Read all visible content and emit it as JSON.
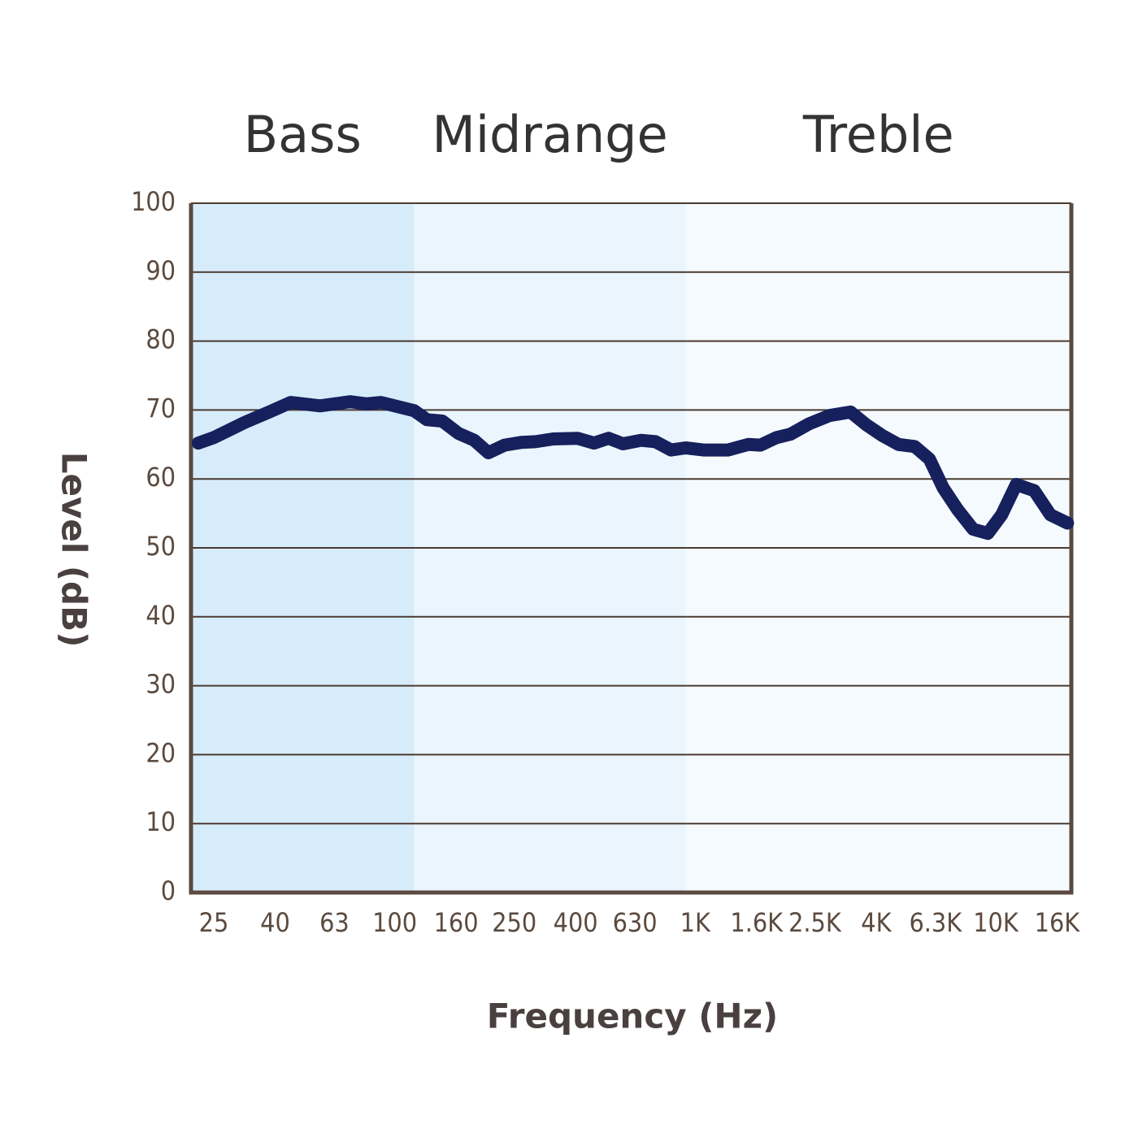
{
  "chart_data": {
    "type": "line",
    "y_label": "Level (dB)",
    "x_label": "Frequency (Hz)",
    "xscale": "log",
    "xlim": [
      21,
      17850
    ],
    "ylim": [
      0,
      100
    ],
    "xticks": [
      25,
      40,
      63,
      100,
      160,
      250,
      400,
      630,
      {
        "value": 1000,
        "label": "1K"
      },
      {
        "value": 1600,
        "label": "1.6K"
      },
      {
        "value": 2500,
        "label": "2.5K"
      },
      {
        "value": 4000,
        "label": "4K"
      },
      {
        "value": 6300,
        "label": "6.3K"
      },
      {
        "value": 10000,
        "label": "10K"
      },
      {
        "value": 16000,
        "label": "16K"
      }
    ],
    "yticks": [
      0,
      10,
      20,
      30,
      40,
      50,
      60,
      70,
      80,
      90,
      100
    ],
    "grid": true,
    "regions": [
      {
        "label": "Bass",
        "from": 21,
        "to": 116,
        "color": "#d7ecfb"
      },
      {
        "label": "Midrange",
        "from": 116,
        "to": 930,
        "color": "#eaf5fd"
      },
      {
        "label": "Treble",
        "from": 930,
        "to": 17850,
        "color": "#f5fafe"
      }
    ],
    "color": "#16205c",
    "x": [
      22.2,
      25,
      31.7,
      38.2,
      45.1,
      56.5,
      71.1,
      80.5,
      90,
      116,
      128,
      144,
      163,
      184,
      205,
      232,
      263,
      294,
      337,
      406,
      460,
      515,
      575,
      660,
      738,
      831,
      930,
      1066,
      1285,
      1500,
      1648,
      1866,
      2075,
      2393,
      2797,
      3288,
      3700,
      4190,
      4745,
      5375,
      6013,
      6684,
      7480,
      8413,
      9418,
      10465,
      11698,
      13425,
      15200,
      17330
    ],
    "values": [
      65.2,
      66.0,
      68.2,
      69.7,
      71.1,
      70.6,
      71.2,
      70.9,
      71.1,
      69.9,
      68.6,
      68.4,
      66.6,
      65.6,
      63.8,
      64.9,
      65.3,
      65.4,
      65.8,
      65.9,
      65.2,
      65.9,
      65.1,
      65.6,
      65.4,
      64.2,
      64.5,
      64.2,
      64.2,
      65.0,
      64.9,
      66.0,
      66.5,
      68.0,
      69.2,
      69.7,
      67.9,
      66.3,
      65.0,
      64.7,
      62.9,
      58.7,
      55.5,
      52.7,
      52.1,
      54.8,
      59.2,
      58.3,
      54.8,
      53.6
    ]
  }
}
